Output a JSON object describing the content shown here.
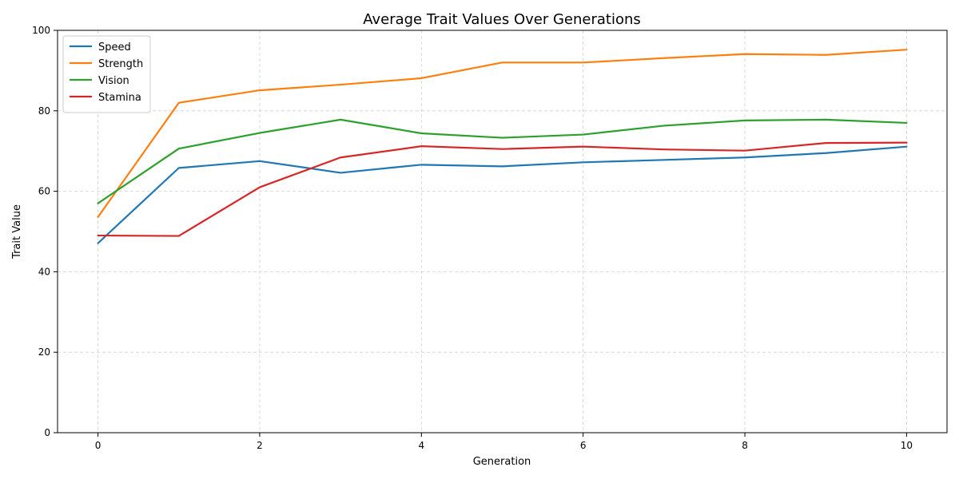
{
  "chart_data": {
    "type": "line",
    "title": "Average Trait Values Over Generations",
    "xlabel": "Generation",
    "ylabel": "Trait Value",
    "xlim": [
      -0.5,
      10.5
    ],
    "ylim": [
      0,
      100
    ],
    "xticks": [
      0,
      2,
      4,
      6,
      8,
      10
    ],
    "yticks": [
      0,
      20,
      40,
      60,
      80,
      100
    ],
    "grid": true,
    "legend_position": "top-left",
    "x": [
      0,
      1,
      2,
      3,
      4,
      5,
      6,
      7,
      8,
      9,
      10
    ],
    "series": [
      {
        "name": "Speed",
        "color": "#1f77b4",
        "values": [
          47.1,
          65.8,
          67.5,
          64.6,
          66.6,
          66.2,
          67.2,
          67.8,
          68.4,
          69.5,
          71.1
        ]
      },
      {
        "name": "Strength",
        "color": "#ff7f0e",
        "values": [
          53.6,
          82.0,
          85.1,
          86.5,
          88.1,
          92.0,
          92.0,
          93.1,
          94.1,
          93.9,
          95.2
        ]
      },
      {
        "name": "Vision",
        "color": "#2ca02c",
        "values": [
          57.0,
          70.6,
          74.5,
          77.8,
          74.4,
          73.3,
          74.1,
          76.3,
          77.6,
          77.8,
          77.0
        ]
      },
      {
        "name": "Stamina",
        "color": "#d62728",
        "values": [
          49.0,
          48.9,
          61.0,
          68.4,
          71.2,
          70.5,
          71.1,
          70.4,
          70.1,
          72.0,
          72.1
        ]
      }
    ]
  }
}
